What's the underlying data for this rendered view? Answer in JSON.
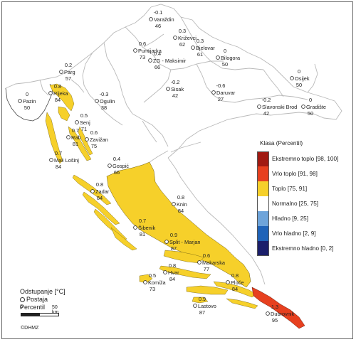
{
  "legend": {
    "title": "Klasa (Percentil)",
    "classes": [
      {
        "label": "Ekstremno toplo [98, 100]",
        "color": "#a11a12"
      },
      {
        "label": "Vrlo toplo [91, 98]",
        "color": "#e7401f"
      },
      {
        "label": "Toplo [75, 91]",
        "color": "#f6d02a"
      },
      {
        "label": "Normalno [25, 75]",
        "color": "#ffffff"
      },
      {
        "label": "Hladno [9, 25]",
        "color": "#6ea4da"
      },
      {
        "label": "Vrlo hladno [2, 9]",
        "color": "#1f63b8"
      },
      {
        "label": "Ekstremno hladno [0, 2]",
        "color": "#1b1f6b"
      }
    ]
  },
  "key": {
    "line1": "Odstupanje [°C]",
    "line2": "Postaja",
    "line3": "Percentil"
  },
  "scalebar": {
    "zero": "0",
    "fifty": "50 km"
  },
  "copyright": "©DHMZ",
  "colors": {
    "land": "#ffffff",
    "border": "#b9b9b9",
    "coast": "#444444",
    "warm": "#f6d02a",
    "very_warm": "#e7401f"
  },
  "stations": [
    {
      "name": "Varaždin",
      "anomaly": "-0.1",
      "percentile": "46"
    },
    {
      "name": "Križevci",
      "anomaly": "0.3",
      "percentile": "62"
    },
    {
      "name": "Bjelovar",
      "anomaly": "0.3",
      "percentile": "61"
    },
    {
      "name": "Puntijarka",
      "anomaly": "0.6",
      "percentile": "73"
    },
    {
      "name": "ZG - Maksimir",
      "anomaly": "0.4",
      "percentile": "66"
    },
    {
      "name": "Bilogora",
      "anomaly": "0",
      "percentile": "50"
    },
    {
      "name": "Osijek",
      "anomaly": "0",
      "percentile": "50"
    },
    {
      "name": "Pazin",
      "anomaly": "0",
      "percentile": "50"
    },
    {
      "name": "Parg",
      "anomaly": "0.2",
      "percentile": "57"
    },
    {
      "name": "Rijeka",
      "anomaly": "0.8",
      "percentile": "84"
    },
    {
      "name": "Ogulin",
      "anomaly": "-0.3",
      "percentile": "38"
    },
    {
      "name": "Sisak",
      "anomaly": "-0.2",
      "percentile": "42"
    },
    {
      "name": "Daruvar",
      "anomaly": "-0.6",
      "percentile": "27"
    },
    {
      "name": "Slavonski Brod",
      "anomaly": "-0.2",
      "percentile": "42"
    },
    {
      "name": "Gradište",
      "anomaly": "0",
      "percentile": "50"
    },
    {
      "name": "Senj",
      "anomaly": "0.5",
      "percentile": "71"
    },
    {
      "name": "Rab",
      "anomaly": "0.7",
      "percentile": "81"
    },
    {
      "name": "Zavižan",
      "anomaly": "0.6",
      "percentile": "75"
    },
    {
      "name": "Mali Lošinj",
      "anomaly": "0.7",
      "percentile": "84"
    },
    {
      "name": "Gospić",
      "anomaly": "0.4",
      "percentile": "66"
    },
    {
      "name": "Zadar",
      "anomaly": "0.8",
      "percentile": "84"
    },
    {
      "name": "Knin",
      "anomaly": "0.8",
      "percentile": "84"
    },
    {
      "name": "Šibenik",
      "anomaly": "0.7",
      "percentile": "81"
    },
    {
      "name": "Split - Marjan",
      "anomaly": "0.9",
      "percentile": "87"
    },
    {
      "name": "Makarska",
      "anomaly": "0.6",
      "percentile": "77"
    },
    {
      "name": "Hvar",
      "anomaly": "0.8",
      "percentile": "84"
    },
    {
      "name": "Komiža",
      "anomaly": "0.5",
      "percentile": "73"
    },
    {
      "name": "Ploče",
      "anomaly": "0.8",
      "percentile": "84"
    },
    {
      "name": "Lastovo",
      "anomaly": "0.9",
      "percentile": "87"
    },
    {
      "name": "Dubrovnik",
      "anomaly": "1.3",
      "percentile": "95"
    }
  ]
}
